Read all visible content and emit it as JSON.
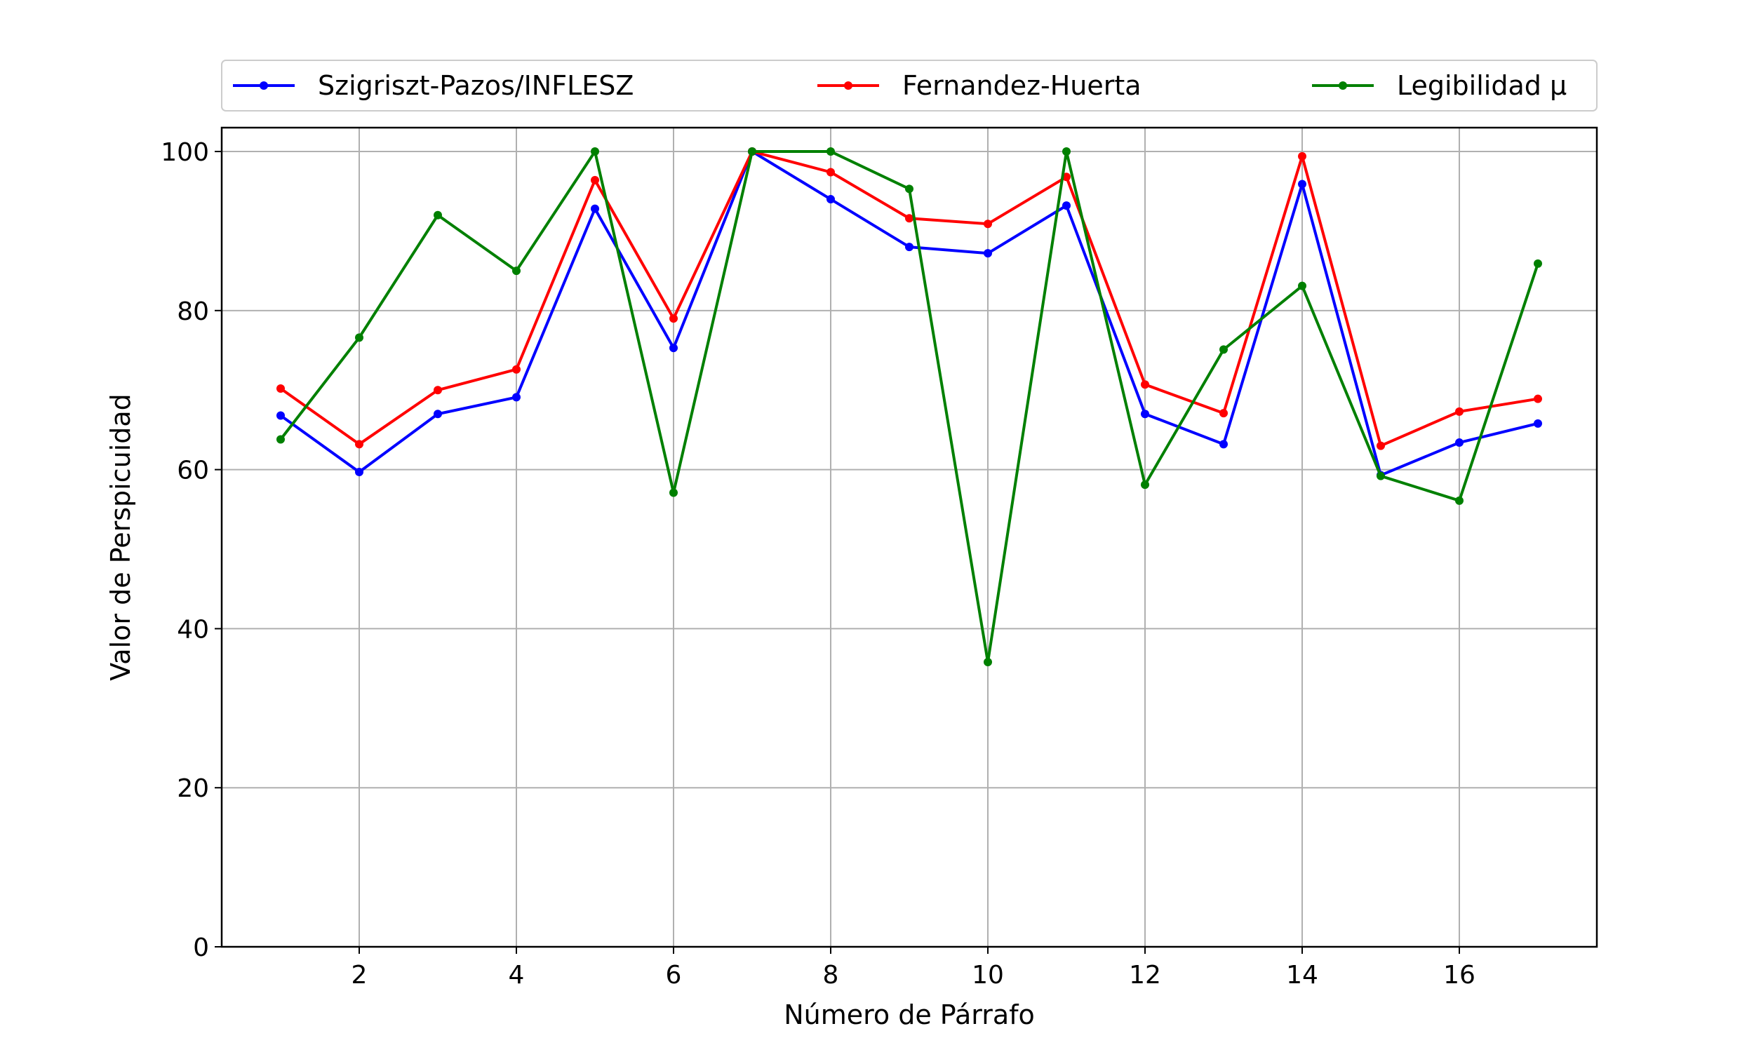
{
  "chart_data": {
    "type": "line",
    "xlabel": "Número de Párrafo",
    "ylabel": "Valor de Perspicuidad",
    "xlim": [
      0.25,
      17.75
    ],
    "ylim": [
      0,
      103
    ],
    "x_ticks": [
      2,
      4,
      6,
      8,
      10,
      12,
      14,
      16
    ],
    "y_ticks": [
      0,
      20,
      40,
      60,
      80,
      100
    ],
    "grid": true,
    "legend_position": "top",
    "x": [
      1,
      2,
      3,
      4,
      5,
      6,
      7,
      8,
      9,
      10,
      11,
      12,
      13,
      14,
      15,
      16,
      17
    ],
    "series": [
      {
        "name": "Szigriszt-Pazos/INFLESZ",
        "color": "#0000ff",
        "values": [
          66.8,
          59.7,
          67.0,
          69.1,
          92.8,
          75.3,
          100.0,
          94.0,
          88.0,
          87.2,
          93.2,
          67.0,
          63.2,
          95.9,
          59.3,
          63.4,
          65.8
        ]
      },
      {
        "name": "Fernandez-Huerta",
        "color": "#ff0000",
        "values": [
          70.2,
          63.2,
          70.0,
          72.6,
          96.4,
          79.0,
          100.0,
          97.4,
          91.6,
          90.9,
          96.8,
          70.7,
          67.1,
          99.4,
          63.0,
          67.3,
          68.9
        ]
      },
      {
        "name": "Legibilidad μ",
        "color": "#008000",
        "values": [
          63.8,
          76.6,
          92.0,
          85.0,
          100.0,
          57.1,
          100.0,
          100.0,
          95.3,
          35.8,
          100.0,
          58.1,
          75.1,
          83.1,
          59.2,
          56.1,
          85.9
        ]
      }
    ]
  }
}
